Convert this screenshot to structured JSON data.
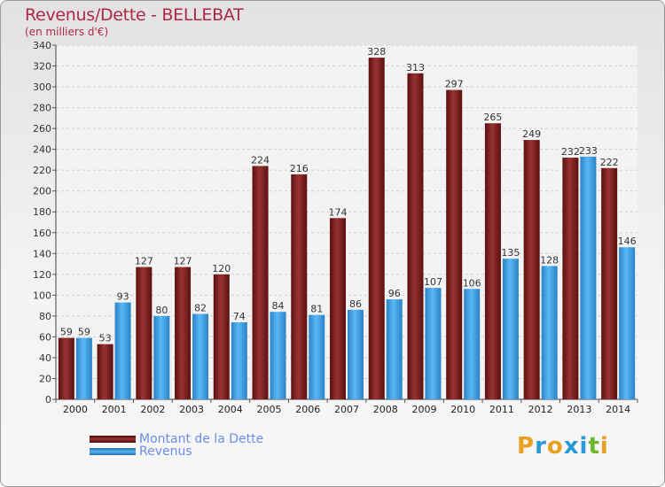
{
  "title": "Revenus/Dette - BELLEBAT",
  "subtitle": "(en milliers d'€)",
  "logo": {
    "letters": [
      "P",
      "r",
      "o",
      "x",
      "i",
      "t",
      "i"
    ],
    "colors": [
      "#e8a020",
      "#2a9ad6",
      "#e8a020",
      "#2a9ad6",
      "#2a9ad6",
      "#6cb82a",
      "#e8a020"
    ]
  },
  "colors": {
    "dette": "#7a1e1e",
    "revenus": "#3a9ee6",
    "title": "#b0264a"
  },
  "chart_data": {
    "type": "bar",
    "categories": [
      "2000",
      "2001",
      "2002",
      "2003",
      "2004",
      "2005",
      "2006",
      "2007",
      "2008",
      "2009",
      "2010",
      "2011",
      "2012",
      "2013",
      "2014"
    ],
    "series": [
      {
        "name": "Montant de la Dette",
        "values": [
          59,
          53,
          127,
          127,
          120,
          224,
          216,
          174,
          328,
          313,
          297,
          265,
          249,
          232,
          222
        ]
      },
      {
        "name": "Revenus",
        "values": [
          59,
          93,
          80,
          82,
          74,
          84,
          81,
          86,
          96,
          107,
          106,
          135,
          128,
          233,
          146
        ]
      }
    ],
    "ylim": [
      0,
      340
    ],
    "yticks": [
      0,
      20,
      40,
      60,
      80,
      100,
      120,
      140,
      160,
      180,
      200,
      220,
      240,
      260,
      280,
      300,
      320,
      340
    ],
    "grid": true,
    "legend": "bottom-left"
  }
}
